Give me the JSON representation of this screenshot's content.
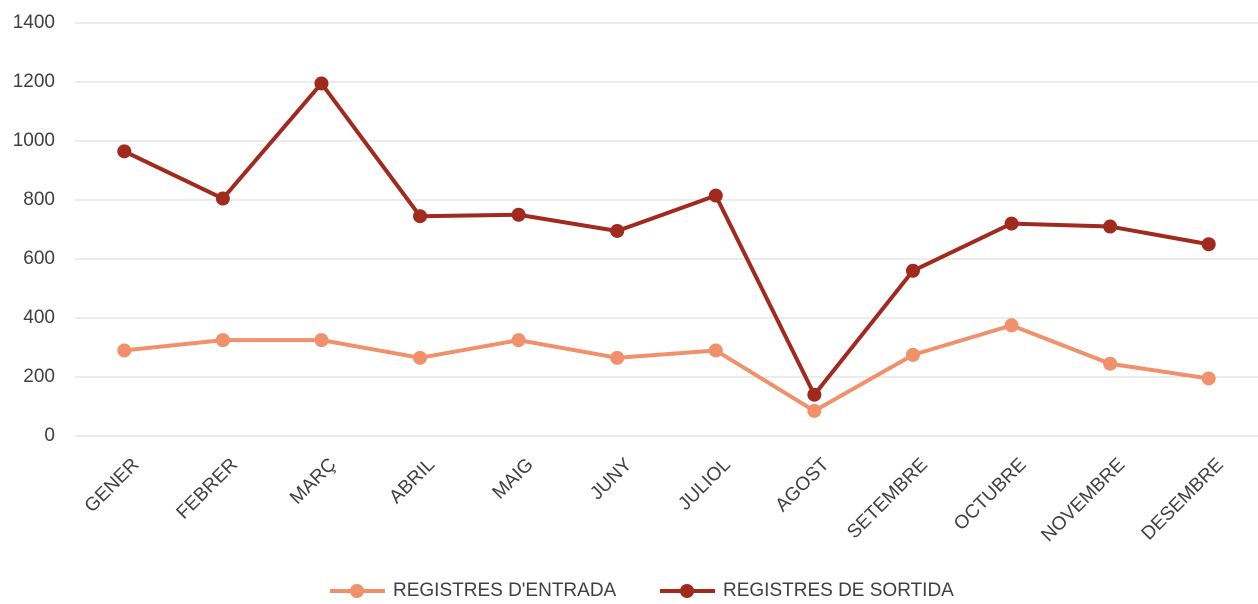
{
  "chart_data": {
    "type": "line",
    "categories": [
      "GENER",
      "FEBRER",
      "MARÇ",
      "ABRIL",
      "MAIG",
      "JUNY",
      "JULIOL",
      "AGOST",
      "SETEMBRE",
      "OCTUBRE",
      "NOVEMBRE",
      "DESEMBRE"
    ],
    "series": [
      {
        "name": "REGISTRES D'ENTRADA",
        "color": "#f0916b",
        "values": [
          290,
          325,
          325,
          265,
          325,
          265,
          290,
          85,
          275,
          375,
          245,
          195
        ]
      },
      {
        "name": "REGISTRES DE SORTIDA",
        "color": "#a12a1f",
        "values": [
          965,
          805,
          1195,
          745,
          750,
          695,
          815,
          140,
          560,
          720,
          710,
          650
        ]
      }
    ],
    "ylim": [
      0,
      1400
    ],
    "yticks": [
      0,
      200,
      400,
      600,
      800,
      1000,
      1200,
      1400
    ],
    "grid": true,
    "legend": "bottom"
  }
}
